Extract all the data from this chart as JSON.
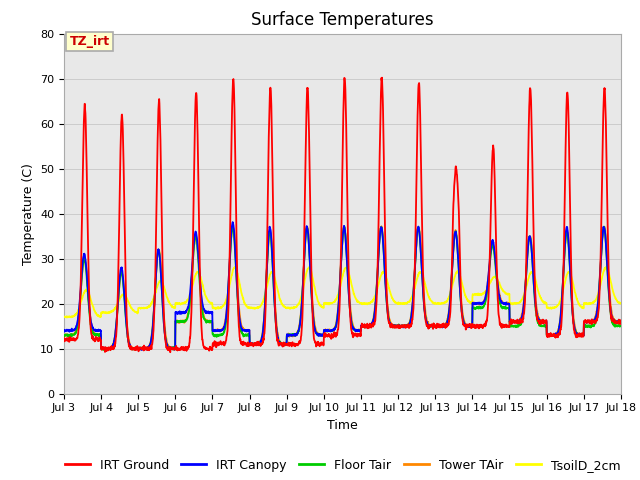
{
  "title": "Surface Temperatures",
  "xlabel": "Time",
  "ylabel": "Temperature (C)",
  "ylim": [
    0,
    80
  ],
  "xlim_days": [
    3,
    18
  ],
  "xtick_labels": [
    "Jul 3",
    "Jul 4",
    "Jul 5",
    "Jul 6",
    "Jul 7",
    "Jul 8",
    "Jul 9",
    "Jul 10",
    "Jul 11",
    "Jul 12",
    "Jul 13",
    "Jul 14",
    "Jul 15",
    "Jul 16",
    "Jul 17",
    "Jul 18"
  ],
  "annotation_text": "TZ_irt",
  "annotation_color": "#cc0000",
  "annotation_bg": "#ffffcc",
  "annotation_border": "#aaaaaa",
  "colors": {
    "IRT Ground": "#ff0000",
    "IRT Canopy": "#0000ff",
    "Floor Tair": "#00cc00",
    "Tower TAir": "#ff8800",
    "TsoilD_2cm": "#ffff00"
  },
  "grid_color": "#cccccc",
  "bg_color": "#e8e8e8",
  "title_fontsize": 12,
  "axis_fontsize": 9,
  "tick_fontsize": 8,
  "legend_fontsize": 9
}
